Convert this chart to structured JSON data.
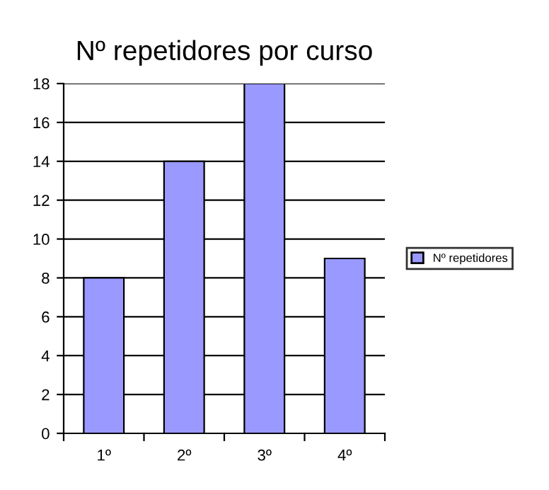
{
  "chart_data": {
    "type": "bar",
    "title": "Nº repetidores por curso",
    "categories": [
      "1º",
      "2º",
      "3º",
      "4º"
    ],
    "series": [
      {
        "name": "Nº repetidores",
        "color": "#9999ff",
        "values": [
          8,
          14,
          18,
          9
        ]
      }
    ],
    "ylim": [
      0,
      18
    ],
    "yticks": [
      0,
      2,
      4,
      6,
      8,
      10,
      12,
      14,
      16,
      18
    ],
    "grid": "y",
    "legend": "right"
  }
}
